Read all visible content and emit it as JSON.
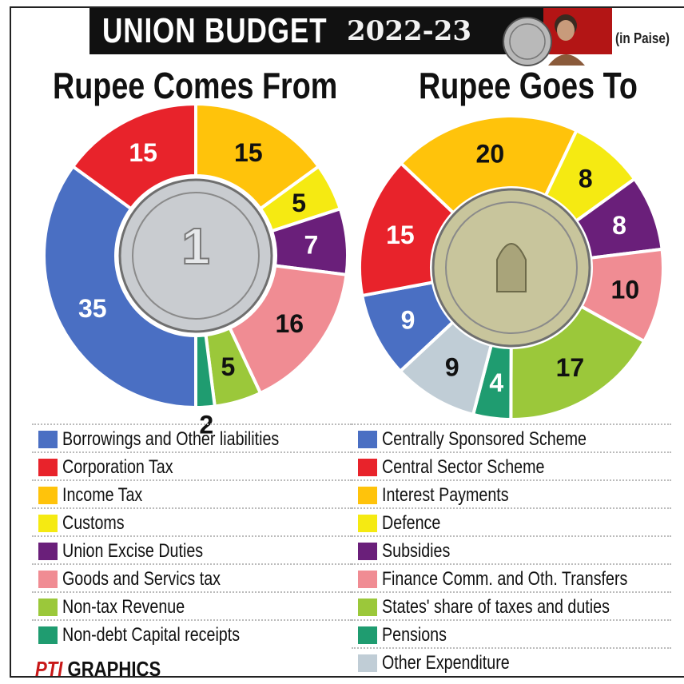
{
  "header": {
    "title": "UNION BUDGET",
    "year": "2022-23",
    "unit_note": "(in Paise)"
  },
  "footer": {
    "brand": "PTI",
    "label": "GRAPHICS"
  },
  "colors": {
    "blue": "#4a6fc3",
    "red": "#e8232b",
    "orange": "#ffc30b",
    "yellow": "#f5ea12",
    "purple": "#6a1f7a",
    "pink": "#f08c93",
    "green": "#9bc83a",
    "teal": "#1f9c70",
    "grey": "#c0cdd6"
  },
  "chart_data": [
    {
      "type": "pie",
      "title": "Rupee Comes From",
      "series": [
        {
          "name": "Borrowings and Other liabilities",
          "value": 35,
          "color": "#4a6fc3"
        },
        {
          "name": "Corporation Tax",
          "value": 15,
          "color": "#e8232b"
        },
        {
          "name": "Income Tax",
          "value": 15,
          "color": "#ffc30b"
        },
        {
          "name": "Customs",
          "value": 5,
          "color": "#f5ea12"
        },
        {
          "name": "Union Excise Duties",
          "value": 7,
          "color": "#6a1f7a"
        },
        {
          "name": "Goods and Servics tax",
          "value": 16,
          "color": "#f08c93"
        },
        {
          "name": "Non-tax Revenue",
          "value": 5,
          "color": "#9bc83a"
        },
        {
          "name": "Non-debt Capital receipts",
          "value": 2,
          "color": "#1f9c70"
        }
      ]
    },
    {
      "type": "pie",
      "title": "Rupee Goes To",
      "series": [
        {
          "name": "Centrally Sponsored Scheme",
          "value": 9,
          "color": "#4a6fc3"
        },
        {
          "name": "Central Sector Scheme",
          "value": 15,
          "color": "#e8232b"
        },
        {
          "name": "Interest Payments",
          "value": 20,
          "color": "#ffc30b"
        },
        {
          "name": "Defence",
          "value": 8,
          "color": "#f5ea12"
        },
        {
          "name": "Subsidies",
          "value": 8,
          "color": "#6a1f7a"
        },
        {
          "name": "Finance Comm. and Oth. Transfers",
          "value": 10,
          "color": "#f08c93"
        },
        {
          "name": "States' share of taxes and duties",
          "value": 17,
          "color": "#9bc83a"
        },
        {
          "name": "Pensions",
          "value": 4,
          "color": "#1f9c70"
        },
        {
          "name": "Other Expenditure",
          "value": 9,
          "color": "#c0cdd6"
        }
      ]
    }
  ]
}
